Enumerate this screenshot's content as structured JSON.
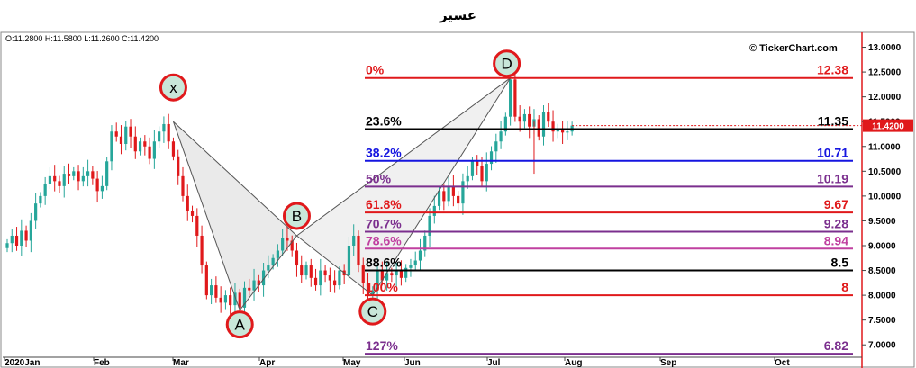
{
  "title": "عسير",
  "ohlc_label": "O:11.2800  H:11.5800  L:11.2600  C:11.4200",
  "watermark": "© TickerChart.com",
  "colors": {
    "up": "#26a69a",
    "down": "#e0191b",
    "border": "#e0191b",
    "pattern_fill": "#d9d9d9",
    "marker_fill": "#c9e7d9",
    "marker_stroke": "#e0191b"
  },
  "chart_data": {
    "type": "candlestick",
    "title": "عسير",
    "x_ticks": [
      "2020Jan",
      "Feb",
      "Mar",
      "Apr",
      "May",
      "Jun",
      "Jul",
      "Aug",
      "Sep",
      "Oct"
    ],
    "y_ticks": [
      "7.0000",
      "7.5000",
      "8.0000",
      "8.5000",
      "9.0000",
      "9.5000",
      "10.0000",
      "10.5000",
      "11.0000",
      "11.5000",
      "12.0000",
      "12.5000",
      "13.0000"
    ],
    "ylim": [
      6.75,
      13.3
    ],
    "last_price": "11.4200",
    "close": [
      9.05,
      9.2,
      9.0,
      9.3,
      9.1,
      9.5,
      9.85,
      10.0,
      10.25,
      10.4,
      10.3,
      10.2,
      10.45,
      10.4,
      10.5,
      10.3,
      10.4,
      10.5,
      10.35,
      10.1,
      10.2,
      10.7,
      11.3,
      11.2,
      11.05,
      11.4,
      11.2,
      10.9,
      11.1,
      11.0,
      10.75,
      11.1,
      11.3,
      11.45,
      11.1,
      10.8,
      10.4,
      10.0,
      9.7,
      9.6,
      9.2,
      8.6,
      8.0,
      8.2,
      7.95,
      7.85,
      8.0,
      7.8,
      8.05,
      7.75,
      8.15,
      8.1,
      8.3,
      8.2,
      8.5,
      8.6,
      8.75,
      8.9,
      9.15,
      9.1,
      8.9,
      8.6,
      8.4,
      8.6,
      8.35,
      8.2,
      8.5,
      8.4,
      8.3,
      8.2,
      8.5,
      8.4,
      9.0,
      9.2,
      8.6,
      8.25,
      8.0,
      8.1,
      8.5,
      8.3,
      8.45,
      8.4,
      8.5,
      8.35,
      8.55,
      8.6,
      8.7,
      8.9,
      9.2,
      9.6,
      9.8,
      10.1,
      9.9,
      10.2,
      10.0,
      9.85,
      10.3,
      10.4,
      10.7,
      10.6,
      10.3,
      10.65,
      10.9,
      11.1,
      11.3,
      11.6,
      12.35,
      11.6,
      11.5,
      11.65,
      11.4,
      11.55,
      11.2,
      11.7,
      11.5,
      11.3,
      11.35,
      11.28,
      11.3,
      11.42
    ],
    "fib_levels": [
      {
        "pct": "0%",
        "value": "12.38",
        "price": 12.38,
        "color": "#e0191b"
      },
      {
        "pct": "23.6%",
        "value": "11.35",
        "price": 11.35,
        "color": "#000000"
      },
      {
        "pct": "38.2%",
        "value": "10.71",
        "price": 10.71,
        "color": "#1515e0"
      },
      {
        "pct": "50%",
        "value": "10.19",
        "price": 10.19,
        "color": "#7b2f8e"
      },
      {
        "pct": "61.8%",
        "value": "9.67",
        "price": 9.67,
        "color": "#e0191b"
      },
      {
        "pct": "70.7%",
        "value": "9.28",
        "price": 9.28,
        "color": "#7b2f8e"
      },
      {
        "pct": "78.6%",
        "value": "8.94",
        "price": 8.94,
        "color": "#c040a0"
      },
      {
        "pct": "88.6%",
        "value": "8.5",
        "price": 8.5,
        "color": "#000000"
      },
      {
        "pct": "100%",
        "value": "8",
        "price": 8.0,
        "color": "#e0191b"
      },
      {
        "pct": "127%",
        "value": "6.82",
        "price": 6.82,
        "color": "#7b2f8e"
      }
    ],
    "pattern_points": [
      {
        "label": "x",
        "index": 35,
        "price": 11.5
      },
      {
        "label": "A",
        "index": 49,
        "price": 7.7
      },
      {
        "label": "B",
        "index": 61,
        "price": 9.2
      },
      {
        "label": "C",
        "index": 77,
        "price": 8.0
      },
      {
        "label": "D",
        "index": 106,
        "price": 12.38
      }
    ]
  }
}
